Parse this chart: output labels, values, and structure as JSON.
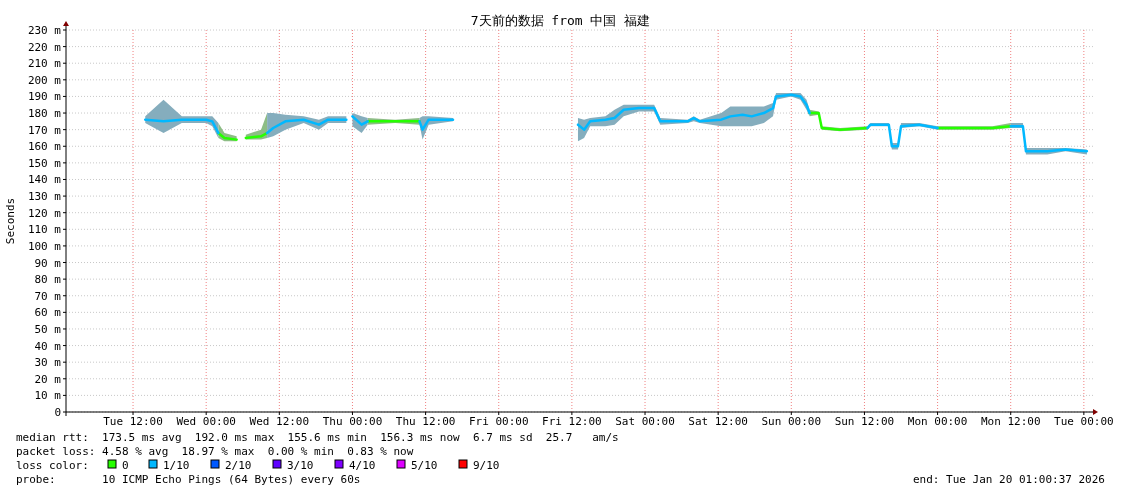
{
  "chart_data": {
    "type": "line",
    "title": "7天前的数据 from 中国 福建",
    "ylabel": "Seconds",
    "legend_title": "loss color:",
    "legend": "bottom",
    "grid": true,
    "xlim": [
      "2026-01-13T01:00",
      "2026-01-20T01:30"
    ],
    "xticks": [
      {
        "value": "2026-01-13T12:00",
        "label": "Tue 12:00"
      },
      {
        "value": "2026-01-14T00:00",
        "label": "Wed 00:00"
      },
      {
        "value": "2026-01-14T12:00",
        "label": "Wed 12:00"
      },
      {
        "value": "2026-01-15T00:00",
        "label": "Thu 00:00"
      },
      {
        "value": "2026-01-15T12:00",
        "label": "Thu 12:00"
      },
      {
        "value": "2026-01-16T00:00",
        "label": "Fri 00:00"
      },
      {
        "value": "2026-01-16T12:00",
        "label": "Fri 12:00"
      },
      {
        "value": "2026-01-17T00:00",
        "label": "Sat 00:00"
      },
      {
        "value": "2026-01-17T12:00",
        "label": "Sat 12:00"
      },
      {
        "value": "2026-01-18T00:00",
        "label": "Sun 00:00"
      },
      {
        "value": "2026-01-18T12:00",
        "label": "Sun 12:00"
      },
      {
        "value": "2026-01-19T00:00",
        "label": "Mon 00:00"
      },
      {
        "value": "2026-01-19T12:00",
        "label": "Mon 12:00"
      },
      {
        "value": "2026-01-20T00:00",
        "label": "Tue 00:00"
      }
    ],
    "ylim": [
      0,
      230
    ],
    "yticks": [
      0,
      {
        "value": 10,
        "label": "10 m"
      },
      {
        "value": 20,
        "label": "20 m"
      },
      {
        "value": 30,
        "label": "30 m"
      },
      {
        "value": 40,
        "label": "40 m"
      },
      {
        "value": 50,
        "label": "50 m"
      },
      {
        "value": 60,
        "label": "60 m"
      },
      {
        "value": 70,
        "label": "70 m"
      },
      {
        "value": 80,
        "label": "80 m"
      },
      {
        "value": 90,
        "label": "90 m"
      },
      {
        "value": 100,
        "label": "100 m"
      },
      {
        "value": 110,
        "label": "110 m"
      },
      {
        "value": 120,
        "label": "120 m"
      },
      {
        "value": 130,
        "label": "130 m"
      },
      {
        "value": 140,
        "label": "140 m"
      },
      {
        "value": 150,
        "label": "150 m"
      },
      {
        "value": 160,
        "label": "160 m"
      },
      {
        "value": 170,
        "label": "170 m"
      },
      {
        "value": 180,
        "label": "180 m"
      },
      {
        "value": 190,
        "label": "190 m"
      },
      {
        "value": 200,
        "label": "200 m"
      },
      {
        "value": 210,
        "label": "210 m"
      },
      {
        "value": 220,
        "label": "220 m"
      },
      {
        "value": 230,
        "label": "230 m"
      }
    ],
    "series": [
      {
        "name": "0",
        "color": "#26ff00",
        "x": [
          "2026-01-14T02:00",
          "2026-01-14T03:00",
          "2026-01-14T05:00",
          "2026-01-14T05:30",
          "2026-01-14T06:30",
          "2026-01-14T09:00",
          "2026-01-14T10:00",
          "2026-01-14T12:00",
          "2026-01-15T02:30",
          "2026-01-15T07:00",
          "2026-01-15T11:00",
          "2026-01-15T12:00",
          "2026-01-18T03:00",
          "2026-01-18T04:30",
          "2026-01-18T05:00",
          "2026-01-18T08:00",
          "2026-01-18T12:30",
          "2026-01-18T12:45",
          "2026-01-19T00:00",
          "2026-01-19T05:00",
          "2026-01-19T09:00",
          "2026-01-19T12:00"
        ],
        "values": [
          168,
          165,
          164,
          null,
          165,
          166,
          168,
          null,
          175,
          175,
          175,
          null,
          180,
          180,
          171,
          170,
          171,
          null,
          171,
          171,
          171,
          172
        ],
        "lower": [
          165,
          163,
          163,
          null,
          164,
          164,
          165,
          null,
          173,
          174,
          173,
          null,
          178,
          179,
          170,
          169,
          170,
          null,
          170,
          170,
          170,
          171
        ],
        "upper": [
          174,
          168,
          166,
          null,
          167,
          170,
          180,
          null,
          177,
          176,
          177,
          null,
          182,
          181,
          172,
          171,
          172,
          null,
          172,
          172,
          172,
          174
        ]
      },
      {
        "name": "1/10",
        "color": "#00b8ff",
        "x": [
          "2026-01-13T14:00",
          "2026-01-13T17:00",
          "2026-01-13T20:00",
          "2026-01-14T00:00",
          "2026-01-14T01:00",
          "2026-01-14T02:00",
          "2026-01-14T06:00",
          "2026-01-14T10:00",
          "2026-01-14T11:00",
          "2026-01-14T13:00",
          "2026-01-14T16:00",
          "2026-01-14T18:30",
          "2026-01-14T20:00",
          "2026-01-14T23:00",
          "2026-01-14T23:30",
          "2026-01-15T00:00",
          "2026-01-15T01:30",
          "2026-01-15T02:30",
          "2026-01-15T04:00",
          "2026-01-15T11:00",
          "2026-01-15T11:30",
          "2026-01-15T12:30",
          "2026-01-15T16:30",
          "2026-01-16T03:00",
          "2026-01-16T13:00",
          "2026-01-16T14:00",
          "2026-01-16T15:00",
          "2026-01-16T17:30",
          "2026-01-16T19:00",
          "2026-01-16T20:30",
          "2026-01-16T23:00",
          "2026-01-17T01:30",
          "2026-01-17T02:30",
          "2026-01-17T07:00",
          "2026-01-17T08:00",
          "2026-01-17T09:00",
          "2026-01-17T12:30",
          "2026-01-17T14:00",
          "2026-01-17T16:00",
          "2026-01-17T17:30",
          "2026-01-17T19:30",
          "2026-01-17T21:00",
          "2026-01-17T21:30",
          "2026-01-18T00:00",
          "2026-01-18T01:30",
          "2026-01-18T02:30",
          "2026-01-18T03:00",
          "2026-01-18T04:00",
          "2026-01-18T12:30",
          "2026-01-18T13:00",
          "2026-01-18T16:00",
          "2026-01-18T16:30",
          "2026-01-18T17:30",
          "2026-01-18T18:00",
          "2026-01-18T21:00",
          "2026-01-19T00:00",
          "2026-01-19T02:00",
          "2026-01-19T12:00",
          "2026-01-19T14:00",
          "2026-01-19T14:30",
          "2026-01-19T18:00",
          "2026-01-19T21:00",
          "2026-01-20T00:30"
        ],
        "values": [
          176,
          175,
          176,
          176,
          175,
          168,
          null,
          168,
          171,
          175,
          176,
          173,
          176,
          176,
          null,
          178,
          173,
          175,
          null,
          175,
          170,
          176,
          176,
          null,
          173,
          170,
          175,
          176,
          177,
          182,
          183,
          183,
          175,
          175,
          177,
          175,
          176,
          178,
          179,
          178,
          180,
          183,
          190,
          191,
          190,
          185,
          180,
          null,
          171,
          173,
          173,
          160,
          160,
          172,
          173,
          171,
          null,
          172,
          172,
          157,
          157,
          158,
          157
        ],
        "lower": [
          174,
          168,
          174,
          174,
          172,
          165,
          null,
          165,
          166,
          170,
          174,
          170,
          174,
          174,
          null,
          172,
          168,
          173,
          null,
          173,
          164,
          173,
          175,
          null,
          163,
          165,
          172,
          172,
          173,
          178,
          181,
          181,
          173,
          174,
          175,
          174,
          172,
          172,
          172,
          172,
          174,
          178,
          188,
          190,
          188,
          182,
          178,
          null,
          170,
          172,
          172,
          158,
          158,
          171,
          172,
          170,
          null,
          171,
          171,
          155,
          155,
          157,
          155
        ],
        "upper": [
          178,
          188,
          178,
          178,
          178,
          174,
          null,
          180,
          180,
          179,
          178,
          176,
          178,
          178,
          null,
          180,
          178,
          177,
          null,
          177,
          178,
          178,
          177,
          null,
          177,
          176,
          177,
          178,
          182,
          185,
          185,
          185,
          177,
          176,
          178,
          176,
          180,
          184,
          184,
          184,
          184,
          186,
          192,
          192,
          192,
          188,
          182,
          null,
          172,
          174,
          174,
          162,
          162,
          174,
          174,
          172,
          null,
          174,
          174,
          159,
          159,
          159,
          158
        ]
      },
      {
        "name": "2/10",
        "color": "#0059ff"
      },
      {
        "name": "3/10",
        "color": "#5e00ff"
      },
      {
        "name": "4/10",
        "color": "#7e00ff"
      },
      {
        "name": "5/10",
        "color": "#dd00ff"
      },
      {
        "name": "9/10",
        "color": "#ff0000"
      }
    ],
    "annotations": [
      "median rtt:  173.5 ms avg  192.0 ms max  155.6 ms min  156.3 ms now  6.7 ms sd  25.7   am/s",
      "packet loss: 4.58 % avg  18.97 % max  0.00 % min  0.83 % now",
      "probe:       10 ICMP Echo Pings (64 Bytes) every 60s",
      "end: Tue Jan 20 01:00:37 2026"
    ]
  }
}
